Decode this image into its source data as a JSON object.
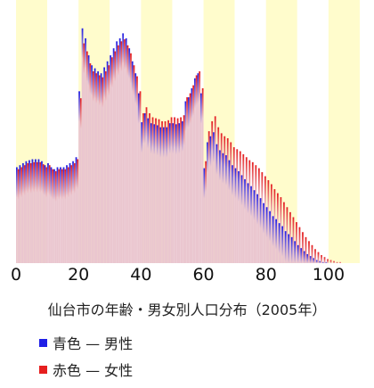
{
  "chart_data": {
    "type": "bar",
    "title": "仙台市の年齢・男女別人口分布（2005年）",
    "xlabel": "",
    "ylabel": "",
    "xlim": [
      0,
      110
    ],
    "xticks": [
      "0",
      "20",
      "40",
      "60",
      "80",
      "100"
    ],
    "grid": false,
    "legend_placement": "bottom-left",
    "colors": {
      "male": "#1f1fe6",
      "female": "#e61f1f",
      "bar_fill": "#eac6cf",
      "band_light": "#fffccc",
      "band_white": "#ffffff"
    },
    "series": [
      {
        "name": "男性",
        "legend_label": "青色 — 男性",
        "values": [
          96,
          98,
          100,
          102,
          103,
          104,
          104,
          104,
          102,
          98,
          100,
          96,
          94,
          96,
          96,
          96,
          98,
          100,
          102,
          106,
          172,
          235,
          225,
          208,
          198,
          195,
          192,
          190,
          196,
          202,
          208,
          215,
          222,
          225,
          230,
          225,
          215,
          202,
          190,
          170,
          141,
          150,
          145,
          140,
          139,
          138,
          136,
          136,
          136,
          140,
          140,
          139,
          140,
          142,
          162,
          166,
          175,
          185,
          190,
          170,
          95,
          121,
          127,
          131,
          119,
          113,
          110,
          108,
          103,
          98,
          95,
          92,
          88,
          84,
          80,
          77,
          73,
          69,
          65,
          60,
          56,
          52,
          47,
          44,
          40,
          37,
          32,
          29,
          26,
          22,
          18,
          15,
          12,
          9,
          7,
          5,
          3,
          2,
          1,
          1,
          0,
          0,
          0,
          0,
          0,
          0,
          0,
          0,
          0,
          0
        ]
      },
      {
        "name": "女性",
        "legend_label": "赤色 — 女性",
        "values": [
          94,
          96,
          98,
          100,
          100,
          101,
          101,
          101,
          99,
          96,
          98,
          94,
          92,
          94,
          94,
          94,
          96,
          98,
          100,
          104,
          165,
          220,
          212,
          200,
          192,
          190,
          188,
          186,
          192,
          198,
          206,
          212,
          218,
          222,
          224,
          218,
          210,
          198,
          187,
          172,
          150,
          156,
          150,
          146,
          145,
          144,
          142,
          142,
          143,
          146,
          146,
          145,
          146,
          148,
          166,
          170,
          178,
          188,
          192,
          175,
          102,
          132,
          142,
          147,
          136,
          130,
          127,
          125,
          121,
          116,
          114,
          112,
          109,
          106,
          103,
          101,
          98,
          95,
          91,
          87,
          83,
          79,
          74,
          70,
          66,
          61,
          56,
          51,
          46,
          41,
          36,
          31,
          26,
          22,
          18,
          14,
          11,
          8,
          6,
          4,
          3,
          2,
          1,
          1,
          0,
          0,
          0,
          0,
          0,
          0
        ]
      }
    ]
  }
}
